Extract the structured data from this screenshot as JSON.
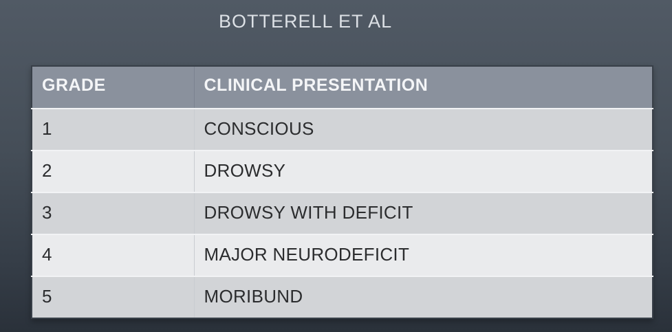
{
  "title": "BOTTERELL ET AL",
  "table": {
    "headers": {
      "grade": "GRADE",
      "presentation": "CLINICAL PRESENTATION"
    },
    "rows": [
      {
        "grade": "1",
        "presentation": "CONSCIOUS"
      },
      {
        "grade": "2",
        "presentation": "DROWSY"
      },
      {
        "grade": "3",
        "presentation": "DROWSY WITH DEFICIT"
      },
      {
        "grade": "4",
        "presentation": "MAJOR NEURODEFICIT"
      },
      {
        "grade": "5",
        "presentation": "MORIBUND"
      }
    ]
  },
  "colors": {
    "background_top": "#515a65",
    "background_bottom": "#2a313a",
    "title_text": "#dce0e5",
    "header_bg": "#8a919d",
    "header_text": "#f4f5f7",
    "row_odd_bg": "#d2d4d7",
    "row_even_bg": "#eaebed",
    "row_text": "#2b2c2e",
    "table_border": "#383f48"
  }
}
